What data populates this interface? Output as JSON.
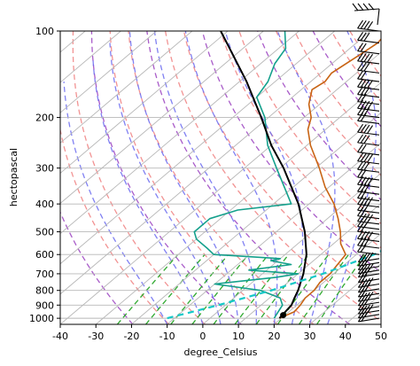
{
  "chart_data": {
    "type": "skew-t",
    "xlabel": "degree_Celsius",
    "ylabel": "hectopascal",
    "xlim": [
      -40,
      50
    ],
    "ylim": [
      1050,
      100
    ],
    "y_scale": "log",
    "x_ticks": [
      -40,
      -30,
      -20,
      -10,
      0,
      10,
      20,
      30,
      40,
      50
    ],
    "y_ticks": [
      100,
      200,
      300,
      400,
      500,
      600,
      700,
      800,
      900,
      1000
    ],
    "grid": true,
    "skew_deg_per_decade": 95,
    "reference_lines": {
      "dry_adiabats": {
        "color": "#f08080",
        "style": "dashed",
        "theta_K": [
          250,
          260,
          270,
          280,
          290,
          300,
          310,
          320,
          330,
          340,
          350,
          360,
          370,
          380,
          390,
          400,
          410,
          420
        ]
      },
      "moist_adiabats": {
        "color": "#6a6af0",
        "style": "dashed",
        "start_T_C": [
          -10,
          0,
          5,
          10,
          15,
          20,
          25,
          30,
          35
        ]
      },
      "mixing_ratio_lines": {
        "color": "#1aa01a",
        "style": "dashed",
        "top_p_hPa": 600,
        "start_T_C": [
          -24,
          -16,
          -9,
          -3,
          3,
          9,
          15,
          21,
          27,
          32
        ]
      },
      "dry_adiabat_highlight": {
        "color": "#9a3fc0"
      }
    },
    "series": [
      {
        "name": "",
        "color": "#c86414",
        "points": [
          {
            "p": 1000,
            "T": 19.5
          },
          {
            "p": 950,
            "T": 21.5
          },
          {
            "p": 900,
            "T": 21
          },
          {
            "p": 850,
            "T": 20
          },
          {
            "p": 800,
            "T": 20
          },
          {
            "p": 750,
            "T": 19
          },
          {
            "p": 700,
            "T": 19
          },
          {
            "p": 650,
            "T": 18
          },
          {
            "p": 600,
            "T": 17
          },
          {
            "p": 550,
            "T": 12
          },
          {
            "p": 500,
            "T": 8
          },
          {
            "p": 450,
            "T": 3
          },
          {
            "p": 400,
            "T": -3
          },
          {
            "p": 350,
            "T": -11
          },
          {
            "p": 300,
            "T": -19
          },
          {
            "p": 250,
            "T": -29
          },
          {
            "p": 220,
            "T": -35
          },
          {
            "p": 200,
            "T": -38
          },
          {
            "p": 180,
            "T": -43
          },
          {
            "p": 160,
            "T": -47
          },
          {
            "p": 150,
            "T": -46
          },
          {
            "p": 140,
            "T": -47
          },
          {
            "p": 120,
            "T": -45
          },
          {
            "p": 110,
            "T": -44
          },
          {
            "p": 100,
            "T": -45
          }
        ]
      },
      {
        "name": "",
        "color": "#14a08c",
        "points": [
          {
            "p": 1000,
            "T": 18
          },
          {
            "p": 950,
            "T": 17
          },
          {
            "p": 900,
            "T": 16
          },
          {
            "p": 850,
            "T": 13
          },
          {
            "p": 800,
            "T": 5
          },
          {
            "p": 760,
            "T": -10
          },
          {
            "p": 720,
            "T": 5
          },
          {
            "p": 700,
            "T": 10
          },
          {
            "p": 680,
            "T": -5
          },
          {
            "p": 650,
            "T": 5
          },
          {
            "p": 630,
            "T": -2
          },
          {
            "p": 620,
            "T": 0
          },
          {
            "p": 600,
            "T": -20
          },
          {
            "p": 570,
            "T": -24
          },
          {
            "p": 530,
            "T": -30
          },
          {
            "p": 500,
            "T": -33
          },
          {
            "p": 450,
            "T": -33
          },
          {
            "p": 420,
            "T": -28
          },
          {
            "p": 400,
            "T": -15
          },
          {
            "p": 300,
            "T": -31
          },
          {
            "p": 250,
            "T": -41
          },
          {
            "p": 200,
            "T": -51
          },
          {
            "p": 170,
            "T": -60
          },
          {
            "p": 150,
            "T": -62
          },
          {
            "p": 130,
            "T": -66
          },
          {
            "p": 115,
            "T": -68
          },
          {
            "p": 100,
            "T": -74
          }
        ]
      },
      {
        "name": "",
        "color": "#000000",
        "points": [
          {
            "p": 1000,
            "T": 19.5
          },
          {
            "p": 950,
            "T": 19
          },
          {
            "p": 900,
            "T": 18.5
          },
          {
            "p": 850,
            "T": 17
          },
          {
            "p": 800,
            "T": 15.5
          },
          {
            "p": 700,
            "T": 11.5
          },
          {
            "p": 600,
            "T": 6
          },
          {
            "p": 500,
            "T": -2
          },
          {
            "p": 400,
            "T": -13
          },
          {
            "p": 300,
            "T": -29
          },
          {
            "p": 250,
            "T": -40
          },
          {
            "p": 200,
            "T": -52
          },
          {
            "p": 150,
            "T": -68
          },
          {
            "p": 100,
            "T": -92
          }
        ]
      },
      {
        "name": "",
        "color": "#14c8c8",
        "style": "dashed",
        "points": [
          {
            "p": 1000,
            "T": -12
          },
          {
            "p": 900,
            "T": -2
          },
          {
            "p": 800,
            "T": 8
          },
          {
            "p": 700,
            "T": 17
          },
          {
            "p": 600,
            "T": 25
          },
          {
            "p": 500,
            "T": 30
          },
          {
            "p": 400,
            "T": 36
          },
          {
            "p": 300,
            "T": 45
          },
          {
            "p": 250,
            "T": 51
          }
        ]
      }
    ],
    "surface_parcel_marker": {
      "p": 975,
      "T": 19.5,
      "color": "#000000"
    },
    "wind_barbs": {
      "color": "#000000",
      "p_levels": [
        1000,
        970,
        940,
        910,
        880,
        850,
        820,
        790,
        760,
        730,
        700,
        680,
        660,
        640,
        620,
        600,
        570,
        540,
        510,
        490,
        470,
        450,
        430,
        410,
        390,
        370,
        350,
        330,
        310,
        290,
        270,
        250,
        230,
        210,
        200,
        190,
        180,
        170,
        160,
        150,
        140,
        130,
        120,
        110,
        100
      ]
    }
  }
}
